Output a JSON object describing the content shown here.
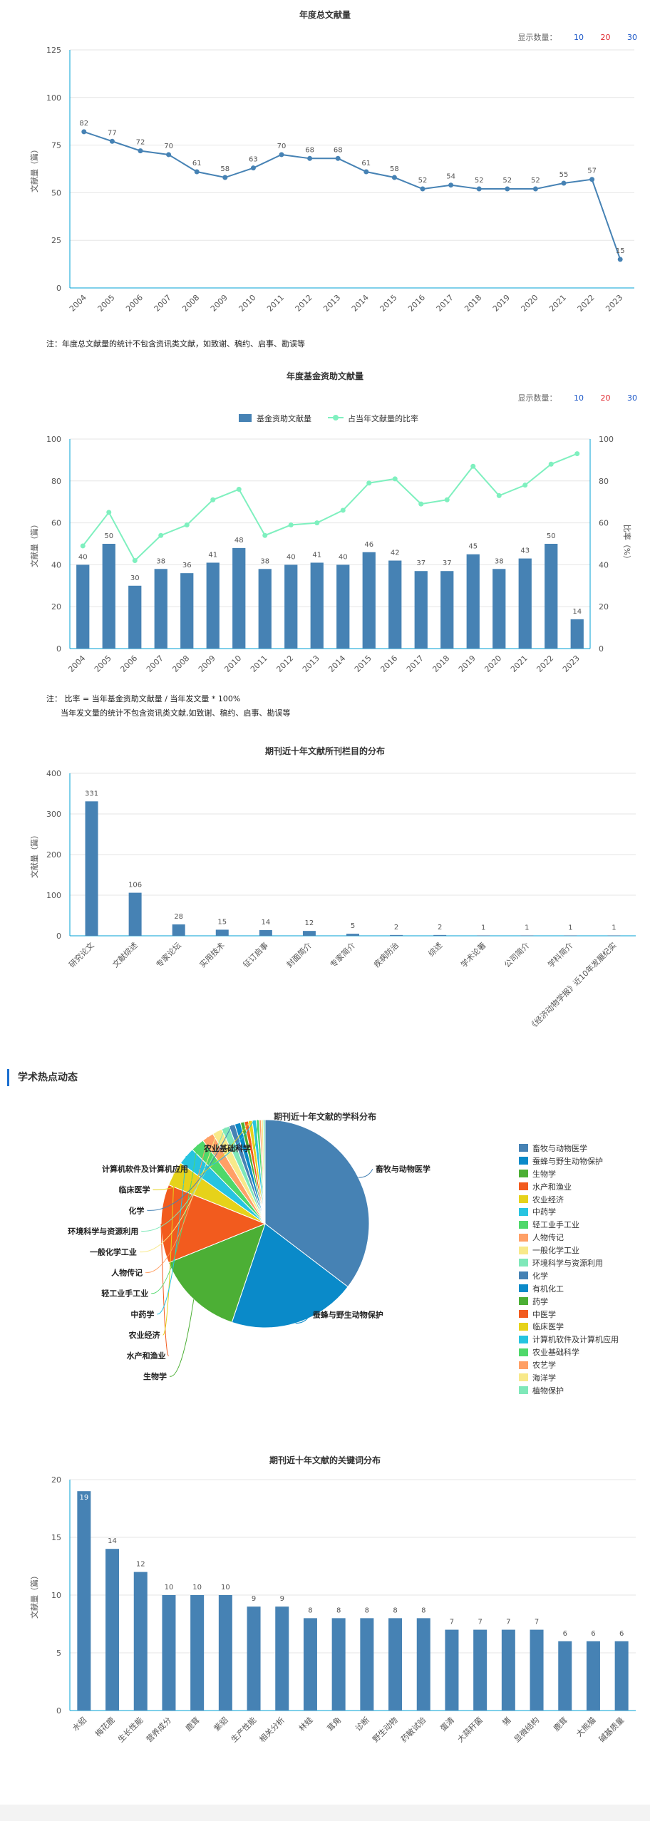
{
  "annual_total": {
    "title": "年度总文献量",
    "selector": {
      "label": "显示数量：",
      "options": [
        "10",
        "20",
        "30"
      ]
    },
    "note": "注：年度总文献量的统计不包含资讯类文献，如致谢、稿约、启事、勘误等"
  },
  "annual_fund": {
    "title": "年度基金资助文献量",
    "selector": {
      "label": "显示数量：",
      "options": [
        "10",
        "20",
        "30"
      ]
    },
    "note_line1": "注： 比率 = 当年基金资助文献量 / 当年发文量 * 100%",
    "note_line2": "当年发文量的统计不包含资讯类文献,如致谢、稿约、启事、勘误等"
  },
  "columns": {
    "title": "期刊近十年文献所刊栏目的分布"
  },
  "hot_section": {
    "title": "学术热点动态"
  },
  "subjects": {
    "title": "期刊近十年文献的学科分布"
  },
  "keywords": {
    "title": "期刊近十年文献的关键词分布"
  },
  "chart_data": [
    {
      "type": "line",
      "title": "年度总文献量",
      "ylabel": "文献量（篇）",
      "x": [
        "2004",
        "2005",
        "2006",
        "2007",
        "2008",
        "2009",
        "2010",
        "2011",
        "2012",
        "2013",
        "2014",
        "2015",
        "2016",
        "2017",
        "2018",
        "2019",
        "2020",
        "2021",
        "2022",
        "2023"
      ],
      "values": [
        82,
        77,
        72,
        70,
        61,
        58,
        63,
        70,
        68,
        68,
        61,
        58,
        52,
        54,
        52,
        52,
        52,
        55,
        57,
        15
      ],
      "ylim": [
        0,
        125
      ],
      "yticks": [
        0,
        25,
        50,
        75,
        100,
        125
      ],
      "color": "#4682b4",
      "grid": true
    },
    {
      "type": "bar",
      "title": "年度基金资助文献量",
      "ylabel": "文献量（篇）",
      "y2label": "比率（%）",
      "categories": [
        "2004",
        "2005",
        "2006",
        "2007",
        "2008",
        "2009",
        "2010",
        "2011",
        "2012",
        "2013",
        "2014",
        "2015",
        "2016",
        "2017",
        "2018",
        "2019",
        "2020",
        "2021",
        "2022",
        "2023"
      ],
      "series": [
        {
          "name": "基金资助文献量",
          "type": "bar",
          "color": "#4682b4",
          "values": [
            40,
            50,
            30,
            38,
            36,
            41,
            48,
            38,
            40,
            41,
            40,
            46,
            42,
            37,
            37,
            45,
            38,
            43,
            50,
            14
          ]
        },
        {
          "name": "占当年文献量的比率",
          "type": "line",
          "color": "#7ff0bf",
          "values": [
            49,
            65,
            42,
            54,
            59,
            71,
            76,
            54,
            59,
            60,
            66,
            79,
            81,
            69,
            71,
            87,
            73,
            78,
            88,
            93
          ]
        }
      ],
      "ylim": [
        0,
        100
      ],
      "y2lim": [
        0,
        100
      ],
      "yticks": [
        0,
        20,
        40,
        60,
        80,
        100
      ],
      "legend": "top-center",
      "grid": true
    },
    {
      "type": "bar",
      "title": "期刊近十年文献所刊栏目的分布",
      "ylabel": "文献量（篇）",
      "categories": [
        "研究论文",
        "文献综述",
        "专家论坛",
        "实用技术",
        "征订启事",
        "封面简介",
        "专家简介",
        "疾病防治",
        "综述",
        "学术论著",
        "公司简介",
        "学科简介",
        "《经济动物学报》近10年发展纪实"
      ],
      "values": [
        331,
        106,
        28,
        15,
        14,
        12,
        5,
        2,
        2,
        1,
        1,
        1,
        1
      ],
      "ylim": [
        0,
        400
      ],
      "yticks": [
        0,
        100,
        200,
        300,
        400
      ],
      "color": "#4682b4",
      "grid": true
    },
    {
      "type": "pie",
      "title": "期刊近十年文献的学科分布",
      "categories": [
        "畜牧与动物医学",
        "蚕蜂与野生动物保护",
        "生物学",
        "水产和渔业",
        "农业经济",
        "中药学",
        "轻工业手工业",
        "人物传记",
        "一般化学工业",
        "环境科学与资源利用",
        "化学",
        "有机化工",
        "药学",
        "中医学",
        "临床医学",
        "计算机软件及计算机应用",
        "农业基础科学",
        "农艺学",
        "海洋学",
        "植物保护"
      ],
      "values": [
        232,
        130,
        90,
        80,
        25,
        18,
        14,
        12,
        10,
        8,
        6,
        6,
        4,
        4,
        4,
        4,
        3,
        2,
        2,
        2
      ],
      "colors": [
        "#4682b4",
        "#0a8ac9",
        "#4caf35",
        "#f25b1e",
        "#e6d21a",
        "#27c4e0",
        "#4fd86a",
        "#ffa066",
        "#f8e98a",
        "#7fe8b9",
        "#4682b4",
        "#0a8ac9",
        "#4caf35",
        "#f25b1e",
        "#e6d21a",
        "#27c4e0",
        "#4fd86a",
        "#ffa066",
        "#f8e98a",
        "#7fe8b9"
      ],
      "outside_labels": [
        "畜牧与动物医学",
        "蚕蜂与野生动物保护",
        "生物学",
        "水产和渔业",
        "农业经济",
        "中药学",
        "轻工业手工业",
        "人物传记",
        "一般化学工业",
        "环境科学与资源利用",
        "化学",
        "临床医学",
        "计算机软件及计算机应用",
        "农业基础科学"
      ],
      "legend": "right"
    },
    {
      "type": "bar",
      "title": "期刊近十年文献的关键词分布",
      "ylabel": "文献量（篇）",
      "categories": [
        "水貂",
        "梅花鹿",
        "生长性能",
        "营养成分",
        "鹿茸",
        "紫貂",
        "生产性能",
        "相关分析",
        "林蛙",
        "茸角",
        "诊断",
        "野生动物",
        "药敏试验",
        "蛋清",
        "大蒜秆菌",
        "猪",
        "显微结构",
        "鹿茸",
        "大熊猫",
        "碱基质量"
      ],
      "values": [
        19,
        14,
        12,
        10,
        10,
        10,
        9,
        9,
        8,
        8,
        8,
        8,
        8,
        7,
        7,
        7,
        7,
        6,
        6,
        6
      ],
      "ylim": [
        0,
        20
      ],
      "yticks": [
        0,
        5,
        10,
        15,
        20
      ],
      "color": "#4682b4",
      "grid": true
    }
  ]
}
